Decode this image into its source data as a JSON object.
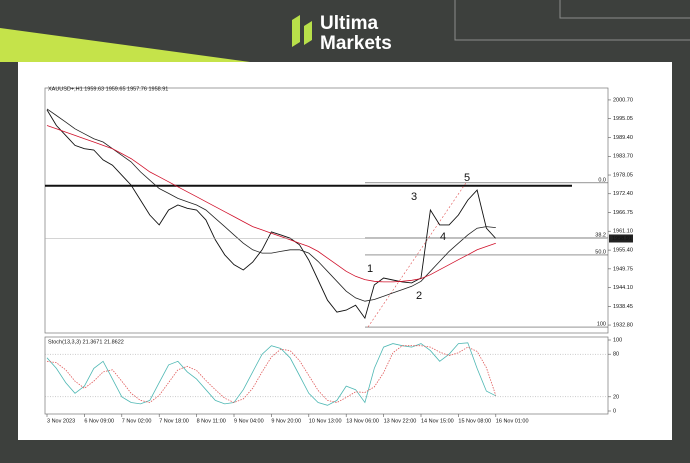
{
  "brand": {
    "line1": "Ultima",
    "line2": "Markets"
  },
  "chart_data": [
    {
      "type": "line",
      "title": "XAUUSD+,H1  1959.63 1959.65 1957.76 1958.91",
      "xlim": [
        0,
        60
      ],
      "xticks": [
        {
          "value": 0,
          "label": "3 Nov 2023"
        },
        {
          "value": 4,
          "label": "6 Nov 09:00"
        },
        {
          "value": 8,
          "label": "7 Nov 02:00"
        },
        {
          "value": 12,
          "label": "7 Nov 18:00"
        },
        {
          "value": 16,
          "label": "8 Nov 11:00"
        },
        {
          "value": 20,
          "label": "9 Nov 04:00"
        },
        {
          "value": 24,
          "label": "9 Nov 20:00"
        },
        {
          "value": 28,
          "label": "10 Nov 13:00"
        },
        {
          "value": 32,
          "label": "13 Nov 06:00"
        },
        {
          "value": 36,
          "label": "13 Nov 22:00"
        },
        {
          "value": 40,
          "label": "14 Nov 15:00"
        },
        {
          "value": 44,
          "label": "15 Nov 08:00"
        },
        {
          "value": 48,
          "label": "16 Nov 01:00"
        }
      ],
      "ylim": [
        1930.4,
        2004.3
      ],
      "yticks": [
        {
          "value": 2000.7,
          "label": "2000.70"
        },
        1995.05,
        {
          "value": 1989.4,
          "label": "1989.40"
        },
        {
          "value": 1983.7,
          "label": "1983.70"
        },
        1978.05,
        {
          "value": 1972.4,
          "label": "1972.40"
        },
        1966.75,
        {
          "value": 1961.1,
          "label": "1961.10"
        },
        {
          "value": 1955.4,
          "label": "1955.40"
        },
        1949.75,
        {
          "value": 1944.1,
          "label": "1944.10"
        },
        1938.45,
        {
          "value": 1932.8,
          "label": "1932.80"
        }
      ],
      "series": [
        {
          "color": "#111111",
          "values": [
            1997.7,
            1993.0,
            1990.0,
            1987.0,
            1986.0,
            1985.6,
            1982.6,
            1981.0,
            1978.0,
            1975.0,
            1970.5,
            1966.0,
            1963.0,
            1967.5,
            1969.0,
            1968.0,
            1967.5,
            1964.5,
            1958.5,
            1954.0,
            1951.0,
            1949.4,
            1951.8,
            1955.5,
            1960.9,
            1960.0,
            1959.0,
            1957.0,
            1952.4,
            1946.4,
            1940.3,
            1936.7,
            1937.3,
            1938.8,
            1934.9,
            1944.9,
            1947.0,
            1946.4,
            1945.8,
            1945.5,
            1947.0,
            1967.5,
            1963.0,
            1963.0,
            1966.0,
            1970.5,
            1973.5,
            1962.0,
            1958.91
          ]
        },
        {
          "color": "#222222",
          "values": [
            1998,
            1996,
            1994,
            1992,
            1990.5,
            1989,
            1988,
            1986,
            1984,
            1982,
            1979,
            1976.5,
            1974,
            1972.5,
            1971,
            1970,
            1969,
            1967.5,
            1965,
            1962.5,
            1960,
            1957.5,
            1955.5,
            1954.5,
            1954.5,
            1955,
            1955.5,
            1955.5,
            1954.5,
            1952,
            1949,
            1946,
            1943,
            1941,
            1940,
            1940.5,
            1941.5,
            1942.5,
            1943.5,
            1944.5,
            1946,
            1949,
            1952,
            1955,
            1957.5,
            1960,
            1962,
            1962.5,
            1962.2
          ]
        },
        {
          "color": "#d0102a",
          "values": [
            1993,
            1992,
            1991,
            1990,
            1989,
            1988,
            1987,
            1986,
            1984.5,
            1983,
            1981,
            1979,
            1977.5,
            1976,
            1974.5,
            1973,
            1971.5,
            1970,
            1968.5,
            1967,
            1965.5,
            1964,
            1962.5,
            1961.5,
            1960.5,
            1959.5,
            1958.5,
            1957.5,
            1956.5,
            1955,
            1953,
            1951,
            1949,
            1947.5,
            1946.5,
            1946,
            1945.8,
            1945.8,
            1946,
            1946.3,
            1946.8,
            1948,
            1949.5,
            1951,
            1952.5,
            1954,
            1955.5,
            1956.5,
            1957.5
          ]
        }
      ],
      "resistance": 1974.8,
      "fib": {
        "range": [
          1975.7,
          1932.2
        ],
        "color": "#555555",
        "levels": [
          {
            "value": 0,
            "label": "0.0"
          },
          38.2,
          {
            "value": 50,
            "label": "50.0"
          },
          100
        ]
      },
      "wave_labels": [
        "1",
        "2",
        "3",
        "4",
        "5"
      ]
    },
    {
      "type": "line",
      "title": "Stoch(13,3,3) 21.3671 21.8622",
      "xlim": [
        0,
        60
      ],
      "ylim": [
        0,
        100
      ],
      "yticks": [
        0,
        20,
        80,
        100
      ],
      "series": [
        {
          "color": "#4fb8b4",
          "values": [
            75,
            60,
            40,
            25,
            35,
            60,
            70,
            45,
            20,
            12,
            10,
            15,
            40,
            65,
            70,
            55,
            45,
            30,
            15,
            10,
            12,
            30,
            55,
            80,
            92,
            88,
            75,
            50,
            25,
            12,
            8,
            15,
            35,
            30,
            12,
            60,
            90,
            95,
            92,
            90,
            95,
            85,
            70,
            80,
            95,
            96,
            60,
            28,
            21.4
          ]
        },
        {
          "color": "#e05a5a",
          "values": [
            70,
            68,
            58,
            42,
            32,
            42,
            55,
            58,
            42,
            25,
            15,
            12,
            22,
            40,
            58,
            63,
            57,
            43,
            30,
            18,
            12,
            17,
            32,
            55,
            76,
            87,
            85,
            71,
            50,
            29,
            15,
            12,
            19,
            27,
            26,
            34,
            54,
            82,
            92,
            92,
            92,
            90,
            83,
            78,
            82,
            90,
            84,
            61,
            21.9
          ]
        }
      ]
    }
  ]
}
